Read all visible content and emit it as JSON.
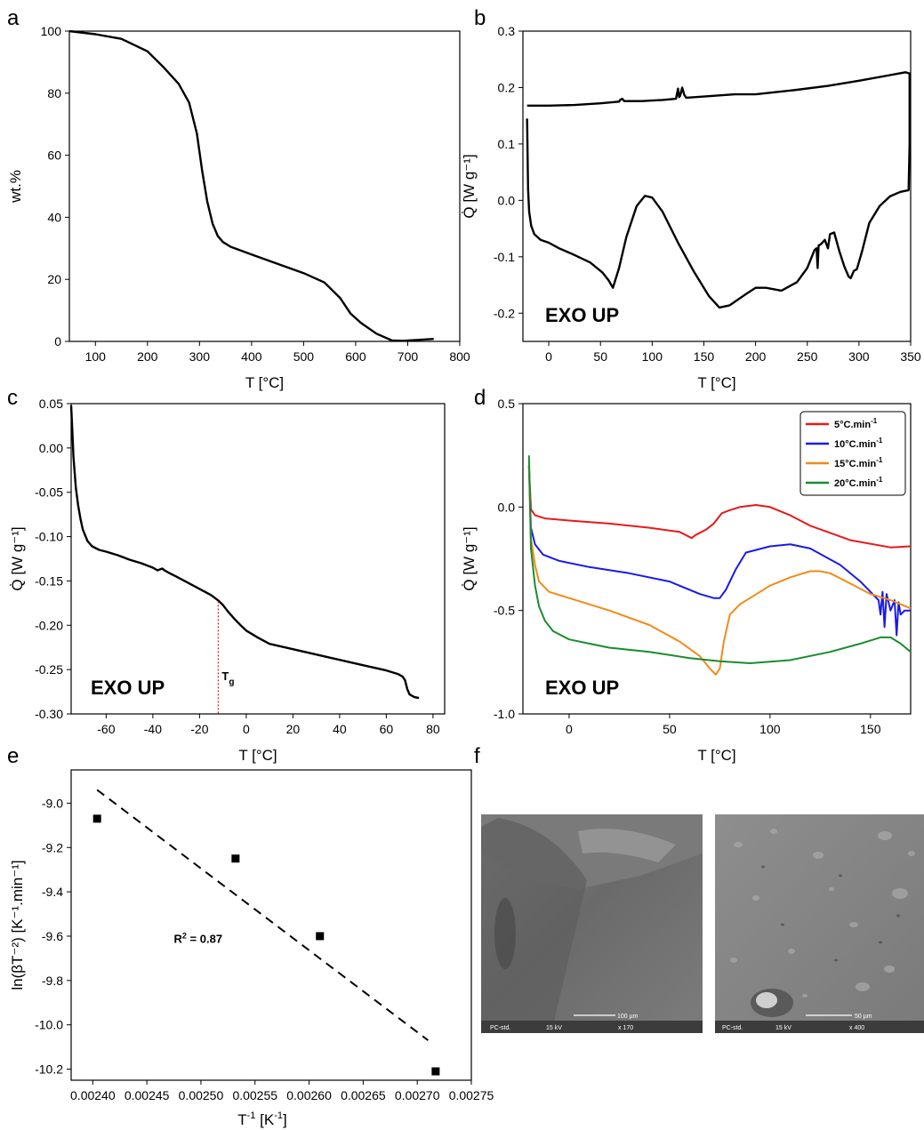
{
  "panel_labels": [
    "a",
    "b",
    "c",
    "d",
    "e",
    "f"
  ],
  "chart_data": [
    {
      "panel": "a",
      "type": "line",
      "xlabel": "T [°C]",
      "ylabel": "wt.%",
      "xlim": [
        50,
        800
      ],
      "ylim": [
        0,
        100
      ],
      "xticks": [
        100,
        200,
        300,
        400,
        500,
        600,
        700,
        800
      ],
      "yticks": [
        0,
        20,
        40,
        60,
        80,
        100
      ],
      "series": [
        {
          "color": "#000000",
          "x": [
            50,
            100,
            150,
            200,
            230,
            260,
            280,
            295,
            305,
            315,
            325,
            335,
            345,
            360,
            400,
            450,
            500,
            540,
            570,
            590,
            610,
            640,
            670,
            690,
            720,
            750
          ],
          "y": [
            100,
            99,
            97.5,
            93.5,
            88.5,
            83,
            77,
            67,
            55,
            45,
            38,
            34,
            32,
            30.5,
            28,
            25,
            22,
            19,
            14,
            9,
            6,
            2.5,
            0.3,
            0.2,
            0.5,
            0.8
          ]
        }
      ]
    },
    {
      "panel": "b",
      "type": "line",
      "xlabel": "T [°C]",
      "ylabel": "Q̇ [W g⁻¹]",
      "annotation": "EXO UP",
      "xlim": [
        -25,
        350
      ],
      "ylim": [
        -0.25,
        0.3
      ],
      "xticks": [
        0,
        50,
        100,
        150,
        200,
        250,
        300,
        350
      ],
      "yticks": [
        -0.2,
        -0.1,
        0.0,
        0.1,
        0.2,
        0.3
      ],
      "series": [
        {
          "color": "#000000",
          "x": [
            -21,
            -20,
            -19,
            -17,
            -14,
            -8,
            0,
            10,
            25,
            40,
            52,
            58,
            62,
            68,
            75,
            85,
            93,
            100,
            110,
            125,
            140,
            155,
            165,
            175,
            190,
            200,
            210,
            225,
            240,
            250,
            257,
            259,
            260,
            261,
            263,
            267,
            270,
            272,
            276,
            281,
            286,
            290,
            292,
            295,
            298,
            303,
            310,
            320,
            330,
            340,
            348,
            349,
            349,
            345,
            330,
            300,
            270,
            240,
            210,
            200,
            180,
            165,
            150,
            133,
            131,
            129,
            127,
            126,
            125,
            123,
            110,
            90,
            73,
            71,
            69,
            68,
            50,
            25,
            0,
            -21
          ],
          "y": [
            0.145,
            0.02,
            -0.02,
            -0.045,
            -0.06,
            -0.07,
            -0.075,
            -0.085,
            -0.097,
            -0.11,
            -0.128,
            -0.142,
            -0.155,
            -0.12,
            -0.065,
            -0.01,
            0.008,
            0.005,
            -0.02,
            -0.075,
            -0.125,
            -0.17,
            -0.19,
            -0.186,
            -0.167,
            -0.155,
            -0.155,
            -0.16,
            -0.145,
            -0.12,
            -0.088,
            -0.085,
            -0.12,
            -0.08,
            -0.078,
            -0.07,
            -0.085,
            -0.06,
            -0.057,
            -0.09,
            -0.118,
            -0.135,
            -0.138,
            -0.125,
            -0.122,
            -0.09,
            -0.04,
            -0.01,
            0.007,
            0.015,
            0.018,
            0.1,
            0.225,
            0.227,
            0.222,
            0.212,
            0.203,
            0.196,
            0.19,
            0.188,
            0.188,
            0.186,
            0.184,
            0.182,
            0.187,
            0.2,
            0.185,
            0.183,
            0.198,
            0.18,
            0.178,
            0.176,
            0.176,
            0.18,
            0.178,
            0.175,
            0.172,
            0.169,
            0.168,
            0.168
          ]
        }
      ]
    },
    {
      "panel": "c",
      "type": "line",
      "xlabel": "T [°C]",
      "ylabel": "Q̇ [W g⁻¹]",
      "annotation": "EXO UP",
      "tg_label": "T",
      "tg_sub": "g",
      "tg_x": -12,
      "xlim": [
        -75,
        85
      ],
      "ylim": [
        -0.3,
        0.05
      ],
      "xticks": [
        -60,
        -40,
        -20,
        0,
        20,
        40,
        60,
        80
      ],
      "yticks": [
        -0.3,
        -0.25,
        -0.2,
        -0.15,
        -0.1,
        -0.05,
        0.0,
        0.05
      ],
      "series": [
        {
          "color": "#000000",
          "x": [
            -75,
            -74.5,
            -74,
            -73,
            -72,
            -71,
            -70,
            -68,
            -66,
            -63,
            -60,
            -55,
            -50,
            -45,
            -40,
            -38,
            -36,
            -35,
            -33,
            -30,
            -25,
            -20,
            -15,
            -12,
            -10,
            -8,
            -5,
            -2,
            0,
            5,
            10,
            20,
            30,
            40,
            50,
            60,
            65,
            67,
            68,
            69,
            70,
            72,
            74
          ],
          "y": [
            0.048,
            0.02,
            -0.01,
            -0.045,
            -0.065,
            -0.08,
            -0.092,
            -0.105,
            -0.111,
            -0.115,
            -0.117,
            -0.121,
            -0.126,
            -0.13,
            -0.135,
            -0.138,
            -0.136,
            -0.138,
            -0.141,
            -0.145,
            -0.152,
            -0.159,
            -0.166,
            -0.172,
            -0.177,
            -0.184,
            -0.193,
            -0.201,
            -0.206,
            -0.214,
            -0.221,
            -0.227,
            -0.233,
            -0.239,
            -0.245,
            -0.251,
            -0.255,
            -0.258,
            -0.262,
            -0.272,
            -0.278,
            -0.281,
            -0.282
          ]
        }
      ]
    },
    {
      "panel": "d",
      "type": "line",
      "xlabel": "T [°C]",
      "ylabel": "Q̇ [W g⁻¹]",
      "annotation": "EXO UP",
      "xlim": [
        -23,
        170
      ],
      "ylim": [
        -1.0,
        0.5
      ],
      "xticks": [
        0,
        50,
        100,
        150
      ],
      "yticks": [
        -1.0,
        -0.5,
        0.0,
        0.5
      ],
      "legend_position": "top-right",
      "series": [
        {
          "name": "5°C.min",
          "name_sup": "-1",
          "color": "#e8191a",
          "x": [
            -20,
            -19,
            -17,
            -12,
            0,
            20,
            40,
            55,
            61,
            63,
            68,
            72,
            76,
            80,
            85,
            93,
            100,
            110,
            120,
            140,
            160,
            170
          ],
          "y": [
            0.2,
            -0.01,
            -0.04,
            -0.055,
            -0.065,
            -0.08,
            -0.1,
            -0.12,
            -0.15,
            -0.135,
            -0.11,
            -0.08,
            -0.03,
            -0.015,
            0.0,
            0.01,
            0.0,
            -0.04,
            -0.09,
            -0.16,
            -0.195,
            -0.19
          ]
        },
        {
          "name": "10°C.min",
          "name_sup": "-1",
          "color": "#1a1ae8",
          "x": [
            -20,
            -19,
            -17,
            -13,
            -5,
            10,
            30,
            50,
            65,
            72,
            75,
            78,
            83,
            88,
            100,
            110,
            120,
            135,
            145,
            150,
            152,
            154,
            155,
            156,
            157,
            158,
            160,
            162,
            163,
            164,
            165,
            167,
            170
          ],
          "y": [
            0.2,
            -0.1,
            -0.18,
            -0.23,
            -0.26,
            -0.29,
            -0.32,
            -0.36,
            -0.42,
            -0.44,
            -0.44,
            -0.4,
            -0.3,
            -0.22,
            -0.19,
            -0.18,
            -0.2,
            -0.28,
            -0.36,
            -0.41,
            -0.43,
            -0.45,
            -0.52,
            -0.41,
            -0.58,
            -0.42,
            -0.5,
            -0.45,
            -0.62,
            -0.46,
            -0.52,
            -0.5,
            -0.5
          ]
        },
        {
          "name": "15°C.min",
          "name_sup": "-1",
          "color": "#f28a1a",
          "x": [
            -20,
            -19,
            -17,
            -15,
            -10,
            0,
            20,
            40,
            55,
            65,
            70,
            73,
            75,
            77,
            80,
            85,
            90,
            100,
            110,
            120,
            125,
            130,
            140,
            150,
            160,
            170
          ],
          "y": [
            0.2,
            -0.15,
            -0.28,
            -0.36,
            -0.41,
            -0.44,
            -0.5,
            -0.57,
            -0.65,
            -0.72,
            -0.78,
            -0.81,
            -0.78,
            -0.65,
            -0.52,
            -0.47,
            -0.44,
            -0.38,
            -0.34,
            -0.31,
            -0.31,
            -0.32,
            -0.37,
            -0.42,
            -0.45,
            -0.49
          ]
        },
        {
          "name": "20°C.min",
          "name_sup": "-1",
          "color": "#1a8c2e",
          "x": [
            -20,
            -19,
            -17,
            -15,
            -12,
            -8,
            0,
            10,
            20,
            40,
            60,
            75,
            90,
            110,
            130,
            145,
            155,
            160,
            165,
            170
          ],
          "y": [
            0.25,
            -0.2,
            -0.38,
            -0.48,
            -0.55,
            -0.6,
            -0.64,
            -0.66,
            -0.68,
            -0.7,
            -0.73,
            -0.745,
            -0.755,
            -0.74,
            -0.7,
            -0.66,
            -0.63,
            -0.63,
            -0.66,
            -0.7
          ]
        }
      ]
    },
    {
      "panel": "e",
      "type": "scatter",
      "xlabel": "T",
      "xlabel_sup": "-1",
      "xlabel_rest": " [K",
      "xlabel_sup2": "-1",
      "xlabel_end": "]",
      "ylabel": "ln(βT⁻²) [K⁻¹.min⁻¹]",
      "annotation": "R",
      "annotation_sup": "2",
      "annotation_rest": " = 0.87",
      "xlim": [
        0.00238,
        0.00275
      ],
      "ylim": [
        -10.25,
        -8.85
      ],
      "xticks": [
        0.0024,
        0.00245,
        0.0025,
        0.00255,
        0.0026,
        0.00265,
        0.0027,
        0.00275
      ],
      "yticks": [
        -9.0,
        -9.2,
        -9.4,
        -9.6,
        -9.8,
        -10.0,
        -10.2
      ],
      "points": {
        "x": [
          0.002404,
          0.002532,
          0.00261,
          0.002717
        ],
        "y": [
          -9.07,
          -9.25,
          -9.6,
          -10.21
        ]
      },
      "fit_line": {
        "x": [
          0.002404,
          0.00271
        ],
        "y": [
          -8.94,
          -10.07
        ],
        "style": "dashed"
      }
    }
  ],
  "sem_images": [
    {
      "panel": "f",
      "sample": "PC-std.",
      "voltage": "15 kV",
      "magnification": "x 170",
      "scale_bar": "100 µm"
    },
    {
      "panel": "f",
      "sample": "PC-std.",
      "voltage": "15 kV",
      "magnification": "x 400",
      "scale_bar": "50 µm"
    }
  ]
}
